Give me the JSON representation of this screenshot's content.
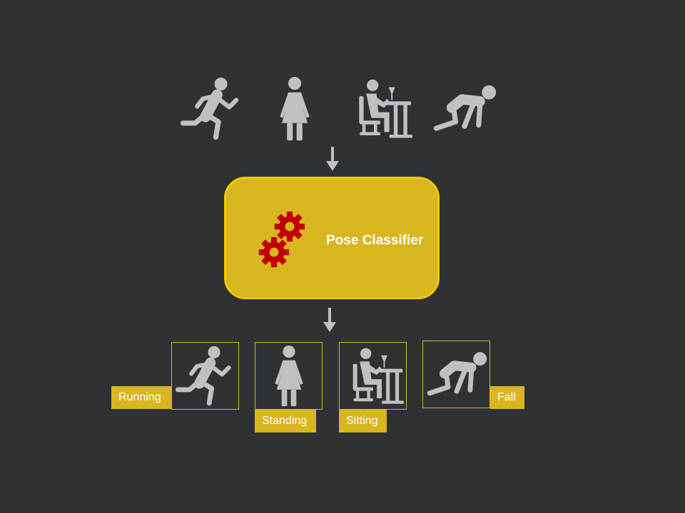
{
  "input_poses": [
    {
      "name": "running",
      "icon": "running-person-icon"
    },
    {
      "name": "standing",
      "icon": "standing-person-icon"
    },
    {
      "name": "sitting",
      "icon": "sitting-person-icon"
    },
    {
      "name": "fall",
      "icon": "fallen-person-icon"
    }
  ],
  "classifier": {
    "label": "Pose Classifier",
    "icon": "gears-icon"
  },
  "outputs": [
    {
      "label": "Running",
      "icon": "running-person-icon"
    },
    {
      "label": "Standing",
      "icon": "standing-person-icon"
    },
    {
      "label": "Sitting",
      "icon": "sitting-person-icon"
    },
    {
      "label": "Fall",
      "icon": "fallen-person-icon"
    }
  ],
  "colors": {
    "background": "#2f3234",
    "accent": "#d8b620",
    "accent_border": "#f2c800",
    "icon": "#c0c0c0",
    "gear": "#c00000",
    "text": "#ffffff"
  }
}
